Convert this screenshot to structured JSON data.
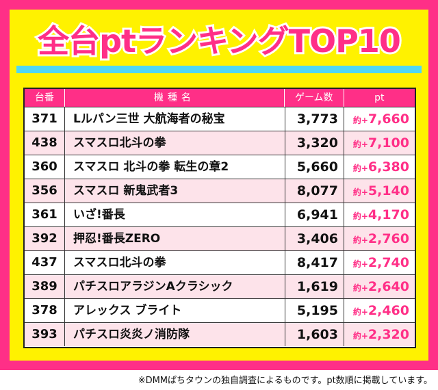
{
  "title": "全台ptランキングTOP10",
  "header": {
    "col_no": "台番",
    "col_name": "機種名",
    "col_games": "ゲーム数",
    "col_pt": "pt"
  },
  "pt_prefix": "約+",
  "rows": [
    {
      "no": "371",
      "name": "Lルパン三世 大航海者の秘宝",
      "games": "3,773",
      "pt": "7,660"
    },
    {
      "no": "438",
      "name": "スマスロ北斗の拳",
      "games": "3,320",
      "pt": "7,100"
    },
    {
      "no": "360",
      "name": "スマスロ 北斗の拳 転生の章2",
      "games": "5,660",
      "pt": "6,380"
    },
    {
      "no": "356",
      "name": "スマスロ 新鬼武者3",
      "games": "8,077",
      "pt": "5,140"
    },
    {
      "no": "361",
      "name": "いざ!番長",
      "games": "6,941",
      "pt": "4,170"
    },
    {
      "no": "392",
      "name": "押忍!番長ZERO",
      "games": "3,406",
      "pt": "2,760"
    },
    {
      "no": "437",
      "name": "スマスロ北斗の拳",
      "games": "8,417",
      "pt": "2,740"
    },
    {
      "no": "389",
      "name": "パチスロアラジンAクラシック",
      "games": "1,619",
      "pt": "2,640"
    },
    {
      "no": "378",
      "name": "アレックス ブライト",
      "games": "5,195",
      "pt": "2,460"
    },
    {
      "no": "393",
      "name": "パチスロ炎炎ノ消防隊",
      "games": "1,603",
      "pt": "2,320"
    }
  ],
  "footnote": "※DMMぱちタウンの独自調査によるものです。pt数順に掲載しています。",
  "colors": {
    "frame_pink": "#ff2f87",
    "panel_yellow": "#fff200",
    "stripe_cyan": "#4fd7f4",
    "row_alt_pink": "#fde3ea"
  }
}
